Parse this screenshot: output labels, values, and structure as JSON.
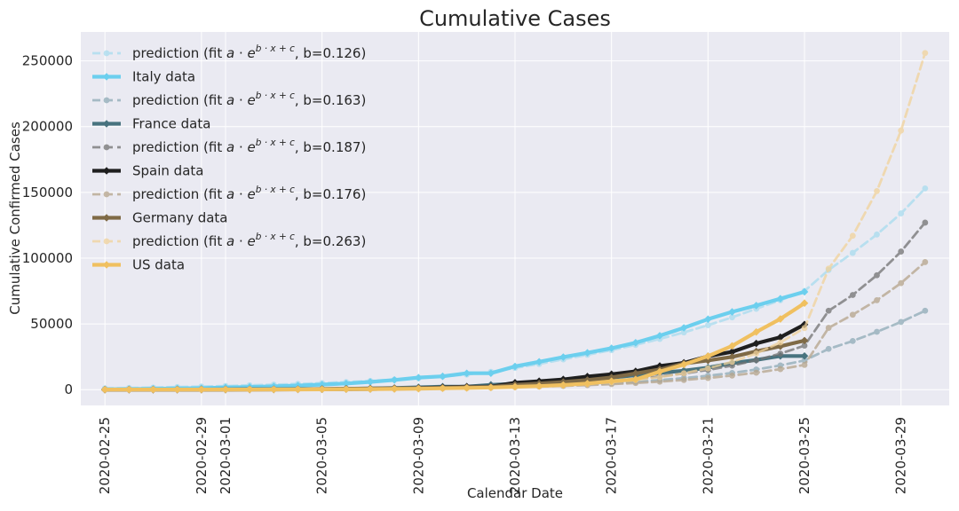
{
  "chart_data": {
    "type": "line",
    "title": "Cumulative Cases",
    "xlabel": "Calendar Date",
    "ylabel": "Cumulative Confirmed Cases",
    "xlim": [
      "2020-02-24",
      "2020-03-31"
    ],
    "ylim": [
      -12000,
      272000
    ],
    "grid": true,
    "legend_position": "top-left",
    "x_ticks": [
      "2020-02-25",
      "2020-02-29",
      "2020-03-01",
      "2020-03-05",
      "2020-03-09",
      "2020-03-13",
      "2020-03-17",
      "2020-03-21",
      "2020-03-25",
      "2020-03-29"
    ],
    "y_ticks": [
      0,
      50000,
      100000,
      150000,
      200000,
      250000
    ],
    "series": [
      {
        "name": "prediction (fit $a \\cdot e^{b \\cdot x + c}$, b=0.126)",
        "legend_prefix": "prediction (fit ",
        "legend_suffix": ", b=0.126)",
        "role": "prediction",
        "color": "#a8dcef",
        "x": [
          "2020-02-25",
          "2020-02-26",
          "2020-02-27",
          "2020-02-28",
          "2020-02-29",
          "2020-03-01",
          "2020-03-02",
          "2020-03-03",
          "2020-03-04",
          "2020-03-05",
          "2020-03-06",
          "2020-03-07",
          "2020-03-08",
          "2020-03-09",
          "2020-03-10",
          "2020-03-11",
          "2020-03-12",
          "2020-03-13",
          "2020-03-14",
          "2020-03-15",
          "2020-03-16",
          "2020-03-17",
          "2020-03-18",
          "2020-03-19",
          "2020-03-20",
          "2020-03-21",
          "2020-03-22",
          "2020-03-23",
          "2020-03-24",
          "2020-03-25",
          "2020-03-26",
          "2020-03-27",
          "2020-03-28",
          "2020-03-29",
          "2020-03-30"
        ],
        "y": [
          1000,
          1300,
          1600,
          2000,
          2400,
          2800,
          3300,
          3800,
          4400,
          5000,
          5800,
          6600,
          7600,
          8700,
          10000,
          11500,
          13500,
          16500,
          19500,
          23000,
          26500,
          30000,
          34000,
          38500,
          43500,
          49000,
          55000,
          61500,
          68000,
          75000,
          91000,
          104000,
          118000,
          134000,
          153000
        ]
      },
      {
        "name": "Italy data",
        "role": "data",
        "color": "#6ccfee",
        "x": [
          "2020-02-25",
          "2020-02-26",
          "2020-02-27",
          "2020-02-28",
          "2020-02-29",
          "2020-03-01",
          "2020-03-02",
          "2020-03-03",
          "2020-03-04",
          "2020-03-05",
          "2020-03-06",
          "2020-03-07",
          "2020-03-08",
          "2020-03-09",
          "2020-03-10",
          "2020-03-11",
          "2020-03-12",
          "2020-03-13",
          "2020-03-14",
          "2020-03-15",
          "2020-03-16",
          "2020-03-17",
          "2020-03-18",
          "2020-03-19",
          "2020-03-20",
          "2020-03-21",
          "2020-03-22",
          "2020-03-23",
          "2020-03-24",
          "2020-03-25"
        ],
        "y": [
          322,
          400,
          650,
          888,
          1128,
          1694,
          2036,
          2502,
          3089,
          3858,
          4636,
          5883,
          7375,
          9172,
          10149,
          12462,
          12462,
          17660,
          21157,
          24747,
          27980,
          31506,
          35713,
          41035,
          47021,
          53578,
          59138,
          63927,
          69176,
          74386
        ]
      },
      {
        "name": "prediction (fit $a \\cdot e^{b \\cdot x + c}$, b=0.163)",
        "legend_prefix": "prediction (fit ",
        "legend_suffix": ", b=0.163)",
        "role": "prediction",
        "color": "#8eabb6",
        "x": [
          "2020-02-25",
          "2020-02-26",
          "2020-02-27",
          "2020-02-28",
          "2020-02-29",
          "2020-03-01",
          "2020-03-02",
          "2020-03-03",
          "2020-03-04",
          "2020-03-05",
          "2020-03-06",
          "2020-03-07",
          "2020-03-08",
          "2020-03-09",
          "2020-03-10",
          "2020-03-11",
          "2020-03-12",
          "2020-03-13",
          "2020-03-14",
          "2020-03-15",
          "2020-03-16",
          "2020-03-17",
          "2020-03-18",
          "2020-03-19",
          "2020-03-20",
          "2020-03-21",
          "2020-03-22",
          "2020-03-23",
          "2020-03-24",
          "2020-03-25",
          "2020-03-26",
          "2020-03-27",
          "2020-03-28",
          "2020-03-29",
          "2020-03-30"
        ],
        "y": [
          100,
          120,
          150,
          180,
          220,
          260,
          310,
          370,
          440,
          520,
          620,
          740,
          900,
          1100,
          1300,
          1600,
          1900,
          2300,
          2800,
          3400,
          4100,
          5000,
          6000,
          7300,
          8800,
          10600,
          12700,
          15300,
          18400,
          22200,
          31000,
          37000,
          44000,
          51500,
          60000
        ]
      },
      {
        "name": "France data",
        "role": "data",
        "color": "#48737f",
        "x": [
          "2020-02-25",
          "2020-02-26",
          "2020-02-27",
          "2020-02-28",
          "2020-02-29",
          "2020-03-01",
          "2020-03-02",
          "2020-03-03",
          "2020-03-04",
          "2020-03-05",
          "2020-03-06",
          "2020-03-07",
          "2020-03-08",
          "2020-03-09",
          "2020-03-10",
          "2020-03-11",
          "2020-03-12",
          "2020-03-13",
          "2020-03-14",
          "2020-03-15",
          "2020-03-16",
          "2020-03-17",
          "2020-03-18",
          "2020-03-19",
          "2020-03-20",
          "2020-03-21",
          "2020-03-22",
          "2020-03-23",
          "2020-03-24",
          "2020-03-25"
        ],
        "y": [
          14,
          18,
          38,
          57,
          100,
          130,
          191,
          212,
          285,
          423,
          653,
          949,
          1209,
          1784,
          2284,
          2284,
          3667,
          4480,
          4513,
          6650,
          7699,
          9105,
          10995,
          12726,
          14459,
          16689,
          20123,
          22622,
          25600,
          25600
        ]
      },
      {
        "name": "prediction (fit $a \\cdot e^{b \\cdot x + c}$, b=0.187)",
        "legend_prefix": "prediction (fit ",
        "legend_suffix": ", b=0.187)",
        "role": "prediction",
        "color": "#737373",
        "x": [
          "2020-02-25",
          "2020-02-26",
          "2020-02-27",
          "2020-02-28",
          "2020-02-29",
          "2020-03-01",
          "2020-03-02",
          "2020-03-03",
          "2020-03-04",
          "2020-03-05",
          "2020-03-06",
          "2020-03-07",
          "2020-03-08",
          "2020-03-09",
          "2020-03-10",
          "2020-03-11",
          "2020-03-12",
          "2020-03-13",
          "2020-03-14",
          "2020-03-15",
          "2020-03-16",
          "2020-03-17",
          "2020-03-18",
          "2020-03-19",
          "2020-03-20",
          "2020-03-21",
          "2020-03-22",
          "2020-03-23",
          "2020-03-24",
          "2020-03-25",
          "2020-03-26",
          "2020-03-27",
          "2020-03-28",
          "2020-03-29",
          "2020-03-30"
        ],
        "y": [
          100,
          120,
          150,
          180,
          220,
          270,
          330,
          400,
          490,
          600,
          730,
          890,
          1100,
          1350,
          1650,
          2000,
          2450,
          3000,
          3700,
          4500,
          5500,
          6700,
          8200,
          10000,
          12300,
          15000,
          18300,
          22400,
          27400,
          33500,
          60000,
          72000,
          87000,
          105000,
          127000
        ]
      },
      {
        "name": "Spain data",
        "role": "data",
        "color": "#1f1f1f",
        "x": [
          "2020-02-25",
          "2020-02-26",
          "2020-02-27",
          "2020-02-28",
          "2020-02-29",
          "2020-03-01",
          "2020-03-02",
          "2020-03-03",
          "2020-03-04",
          "2020-03-05",
          "2020-03-06",
          "2020-03-07",
          "2020-03-08",
          "2020-03-09",
          "2020-03-10",
          "2020-03-11",
          "2020-03-12",
          "2020-03-13",
          "2020-03-14",
          "2020-03-15",
          "2020-03-16",
          "2020-03-17",
          "2020-03-18",
          "2020-03-19",
          "2020-03-20",
          "2020-03-21",
          "2020-03-22",
          "2020-03-23",
          "2020-03-24",
          "2020-03-25"
        ],
        "y": [
          6,
          13,
          15,
          32,
          45,
          84,
          120,
          165,
          222,
          259,
          400,
          500,
          673,
          1073,
          1695,
          2277,
          2277,
          5232,
          6391,
          7798,
          9942,
          11748,
          13910,
          17963,
          20410,
          25374,
          28768,
          35136,
          39885,
          49515
        ]
      },
      {
        "name": "prediction (fit $a \\cdot e^{b \\cdot x + c}$, b=0.176)",
        "legend_prefix": "prediction (fit ",
        "legend_suffix": ", b=0.176)",
        "role": "prediction",
        "color": "#b5a48a",
        "x": [
          "2020-02-25",
          "2020-02-26",
          "2020-02-27",
          "2020-02-28",
          "2020-02-29",
          "2020-03-01",
          "2020-03-02",
          "2020-03-03",
          "2020-03-04",
          "2020-03-05",
          "2020-03-06",
          "2020-03-07",
          "2020-03-08",
          "2020-03-09",
          "2020-03-10",
          "2020-03-11",
          "2020-03-12",
          "2020-03-13",
          "2020-03-14",
          "2020-03-15",
          "2020-03-16",
          "2020-03-17",
          "2020-03-18",
          "2020-03-19",
          "2020-03-20",
          "2020-03-21",
          "2020-03-22",
          "2020-03-23",
          "2020-03-24",
          "2020-03-25",
          "2020-03-26",
          "2020-03-27",
          "2020-03-28",
          "2020-03-29",
          "2020-03-30"
        ],
        "y": [
          80,
          100,
          120,
          140,
          170,
          210,
          250,
          300,
          360,
          440,
          530,
          640,
          770,
          930,
          1120,
          1350,
          1630,
          1970,
          2380,
          2870,
          3460,
          4180,
          5040,
          6080,
          7340,
          8860,
          10700,
          12900,
          15600,
          18800,
          47000,
          57000,
          68000,
          81000,
          97000
        ]
      },
      {
        "name": "Germany data",
        "role": "data",
        "color": "#7f6a46",
        "x": [
          "2020-02-25",
          "2020-02-26",
          "2020-02-27",
          "2020-02-28",
          "2020-02-29",
          "2020-03-01",
          "2020-03-02",
          "2020-03-03",
          "2020-03-04",
          "2020-03-05",
          "2020-03-06",
          "2020-03-07",
          "2020-03-08",
          "2020-03-09",
          "2020-03-10",
          "2020-03-11",
          "2020-03-12",
          "2020-03-13",
          "2020-03-14",
          "2020-03-15",
          "2020-03-16",
          "2020-03-17",
          "2020-03-18",
          "2020-03-19",
          "2020-03-20",
          "2020-03-21",
          "2020-03-22",
          "2020-03-23",
          "2020-03-24",
          "2020-03-25"
        ],
        "y": [
          16,
          18,
          26,
          48,
          79,
          130,
          159,
          196,
          262,
          482,
          670,
          799,
          1040,
          1176,
          1457,
          1908,
          2078,
          3675,
          4585,
          5795,
          7272,
          9257,
          12327,
          15320,
          19848,
          22213,
          24873,
          29056,
          32986,
          37323
        ]
      },
      {
        "name": "prediction (fit $a \\cdot e^{b \\cdot x + c}$, b=0.263)",
        "legend_prefix": "prediction (fit ",
        "legend_suffix": ", b=0.263)",
        "role": "prediction",
        "color": "#f1d29a",
        "x": [
          "2020-02-25",
          "2020-02-26",
          "2020-02-27",
          "2020-02-28",
          "2020-02-29",
          "2020-03-01",
          "2020-03-02",
          "2020-03-03",
          "2020-03-04",
          "2020-03-05",
          "2020-03-06",
          "2020-03-07",
          "2020-03-08",
          "2020-03-09",
          "2020-03-10",
          "2020-03-11",
          "2020-03-12",
          "2020-03-13",
          "2020-03-14",
          "2020-03-15",
          "2020-03-16",
          "2020-03-17",
          "2020-03-18",
          "2020-03-19",
          "2020-03-20",
          "2020-03-21",
          "2020-03-22",
          "2020-03-23",
          "2020-03-24",
          "2020-03-25",
          "2020-03-26",
          "2020-03-27",
          "2020-03-28",
          "2020-03-29",
          "2020-03-30"
        ],
        "y": [
          20,
          25,
          35,
          45,
          60,
          80,
          100,
          130,
          170,
          220,
          290,
          380,
          500,
          650,
          850,
          1100,
          1450,
          1900,
          2500,
          3300,
          4300,
          5600,
          7300,
          9500,
          12400,
          16200,
          21100,
          27500,
          35900,
          46800,
          92000,
          117000,
          151000,
          197000,
          256000
        ]
      },
      {
        "name": "US data",
        "role": "data",
        "color": "#f0c060",
        "x": [
          "2020-02-25",
          "2020-02-26",
          "2020-02-27",
          "2020-02-28",
          "2020-02-29",
          "2020-03-01",
          "2020-03-02",
          "2020-03-03",
          "2020-03-04",
          "2020-03-05",
          "2020-03-06",
          "2020-03-07",
          "2020-03-08",
          "2020-03-09",
          "2020-03-10",
          "2020-03-11",
          "2020-03-12",
          "2020-03-13",
          "2020-03-14",
          "2020-03-15",
          "2020-03-16",
          "2020-03-17",
          "2020-03-18",
          "2020-03-19",
          "2020-03-20",
          "2020-03-21",
          "2020-03-22",
          "2020-03-23",
          "2020-03-24",
          "2020-03-25"
        ],
        "y": [
          53,
          59,
          60,
          62,
          70,
          76,
          101,
          122,
          153,
          221,
          319,
          435,
          541,
          704,
          994,
          1301,
          1630,
          2183,
          2727,
          3499,
          4632,
          6421,
          7786,
          13680,
          19101,
          25493,
          33276,
          43847,
          53740,
          65778
        ]
      }
    ]
  }
}
